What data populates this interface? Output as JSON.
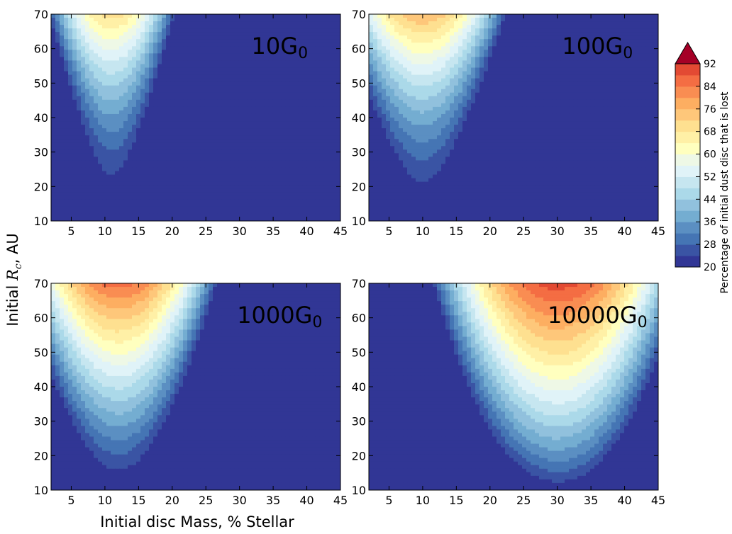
{
  "chart_data": {
    "type": "heatmap",
    "xlabel": "Initial disc Mass, % Stellar",
    "ylabel_prefix": "Initial ",
    "ylabel_symbol": "R",
    "ylabel_subscript": "c",
    "ylabel_suffix": ", AU",
    "xlim": [
      2,
      45
    ],
    "ylim": [
      10,
      70
    ],
    "xticks": [
      5,
      10,
      15,
      20,
      25,
      30,
      35,
      40,
      45
    ],
    "yticks": [
      10,
      20,
      30,
      40,
      50,
      60,
      70
    ],
    "colorbar": {
      "label": "Percentage of initial dust disc that is lost",
      "min": 20,
      "max": 92,
      "step": 4,
      "ticks": [
        20,
        28,
        36,
        44,
        52,
        60,
        68,
        76,
        84,
        92
      ],
      "extend": "max",
      "colors": [
        "#313695",
        "#3a54a4",
        "#4575b4",
        "#5b8fc2",
        "#74add1",
        "#91c1dd",
        "#abd9e9",
        "#c6e6f0",
        "#e0f3f8",
        "#eef8e6",
        "#ffffbf",
        "#fff0a6",
        "#fee090",
        "#fec77a",
        "#fdae61",
        "#f98d52",
        "#f46d43",
        "#e34a33",
        "#a50026"
      ]
    },
    "panels": [
      {
        "label_base": "10G",
        "label_sub": "0",
        "center_x": 11,
        "min": 20,
        "max": 70,
        "rise": 11,
        "exp": 1.7,
        "ridge": 45
      },
      {
        "label_base": "100G",
        "label_sub": "0",
        "center_x": 10,
        "min": 20,
        "max": 76,
        "rise": 7,
        "exp": 1.6,
        "ridge": 0
      },
      {
        "label_base": "1000G",
        "label_sub": "0",
        "center_x": 12,
        "min": 20,
        "max": 86,
        "rise": 6,
        "exp": 1.2,
        "ridge": 35
      },
      {
        "label_base": "10000G",
        "label_sub": "0",
        "center_x": 30,
        "min": 20,
        "max": 90,
        "rise": 4,
        "exp": 0.9,
        "ridge": 0
      }
    ]
  }
}
